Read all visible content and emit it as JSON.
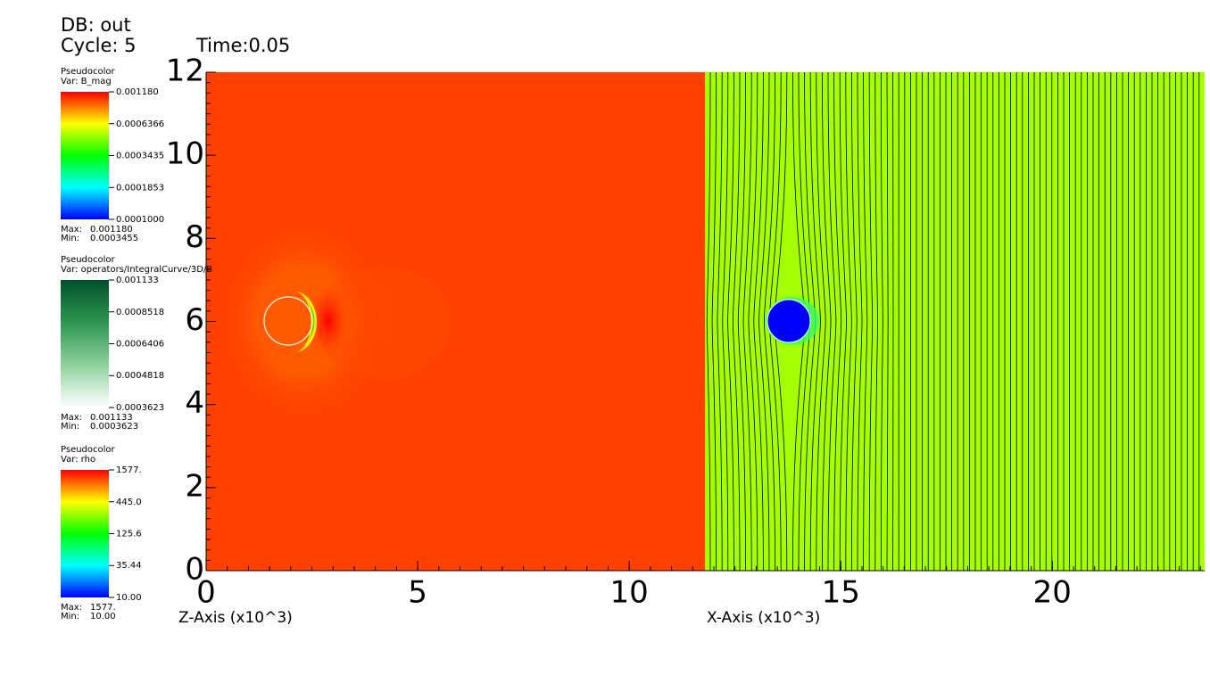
{
  "chart_data": {
    "type": "pseudocolor",
    "db": "DB: out",
    "cycle": "Cycle: 5",
    "time": "Time:0.05",
    "x_labels": [
      "Z-Axis (x10^3)",
      "X-Axis (x10^3)"
    ],
    "xlim": [
      0,
      23.6
    ],
    "xticks": [
      0,
      5,
      10,
      15,
      20
    ],
    "ylim": [
      0,
      12
    ],
    "yticks": [
      0,
      2,
      4,
      6,
      8,
      10,
      12
    ],
    "legends": [
      {
        "title": "Pseudocolor",
        "var": "Var: B_mag",
        "log": true,
        "colors": [
          "#0000ff",
          "#00ffff",
          "#00ff00",
          "#ffff00",
          "#ff0000"
        ],
        "lim": [
          0.0001,
          0.00118
        ],
        "ticks": [
          {
            "value": 0.00118,
            "label": "0.001180"
          },
          0.0006366,
          0.0003435,
          0.0001853,
          {
            "value": 0.0001,
            "label": "0.0001000"
          }
        ],
        "max_label": "Max:",
        "max": {
          "value": 0.00118,
          "label": "0.001180"
        },
        "min_label": "Min:",
        "min": 0.0003455
      },
      {
        "title": "Pseudocolor",
        "var": "Var: operators/IntegralCurve/3D/B",
        "log": true,
        "colors": [
          "#ffffff",
          "#8fd19e",
          "#2e9650",
          "#00502a"
        ],
        "lim": [
          0.0003623,
          0.001133
        ],
        "ticks": [
          0.001133,
          0.0008518,
          0.0006406,
          0.0004818,
          0.0003623
        ],
        "max_label": "Max:",
        "max": 0.001133,
        "min_label": "Min:",
        "min": 0.0003623
      },
      {
        "title": "Pseudocolor",
        "var": "Var: rho",
        "log": true,
        "colors": [
          "#0000ff",
          "#00ffff",
          "#00ff00",
          "#ffff00",
          "#ff0000"
        ],
        "lim": [
          10,
          1577
        ],
        "ticks": [
          {
            "value": 1577,
            "label": "1577."
          },
          {
            "value": 445,
            "label": "445.0"
          },
          125.6,
          35.44,
          {
            "value": 10,
            "label": "10.00"
          }
        ],
        "max_label": "Max:",
        "max": {
          "value": 1577,
          "label": "1577."
        },
        "min_label": "Min:",
        "min": {
          "value": 10,
          "label": "10.00"
        }
      }
    ]
  }
}
